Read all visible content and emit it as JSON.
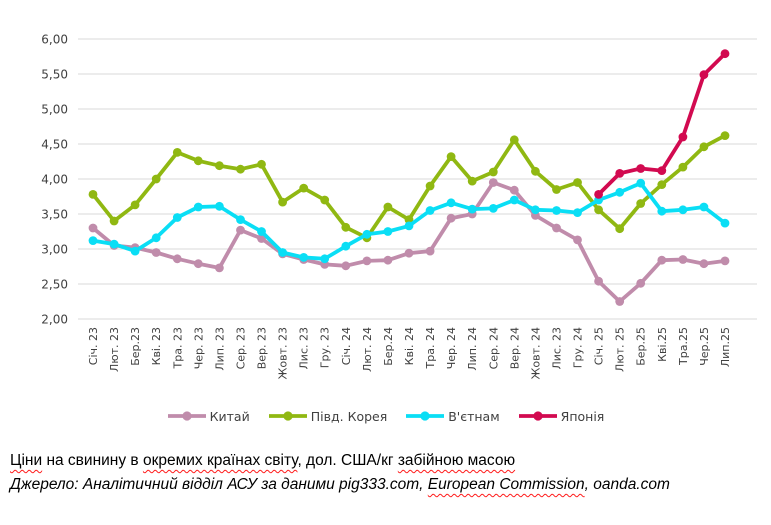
{
  "chart_data": {
    "type": "line",
    "grid": true,
    "legend_position": "bottom",
    "ylim": [
      2.0,
      6.0
    ],
    "y_tick_labels": [
      "6,00",
      "5,50",
      "5,00",
      "4,50",
      "4,00",
      "3,50",
      "3,00",
      "2,50",
      "2,00"
    ],
    "y_tick_values": [
      6.0,
      5.5,
      5.0,
      4.5,
      4.0,
      3.5,
      3.0,
      2.5,
      2.0
    ],
    "categories": [
      "Січ. 23",
      "Лют. 23",
      "Бер.23",
      "Кві. 23",
      "Тра. 23",
      "Чер. 23",
      "Лип. 23",
      "Сер. 23",
      "Вер. 23",
      "Жовт. 23",
      "Лис. 23",
      "Гру. 23",
      "Січ. 24",
      "Лют. 24",
      "Бер.24",
      "Кві. 24",
      "Тра. 24",
      "Чер. 24",
      "Лип. 24",
      "Сер. 24",
      "Вер. 24",
      "Жовт. 24",
      "Лис. 23",
      "Гру. 24",
      "Січ. 25",
      "Лют. 25",
      "Бер.25",
      "Кві.25",
      "Тра.25",
      "Чер.25",
      "Лип.25"
    ],
    "series": [
      {
        "id": "china",
        "name": "Китай",
        "color": "#c08cab",
        "values": [
          3.3,
          3.05,
          3.02,
          2.95,
          2.86,
          2.79,
          2.73,
          3.27,
          3.15,
          2.93,
          2.85,
          2.78,
          2.76,
          2.83,
          2.84,
          2.94,
          2.97,
          3.44,
          3.5,
          3.95,
          3.84,
          3.48,
          3.3,
          3.13,
          2.54,
          2.25,
          2.51,
          2.84,
          2.85,
          2.79,
          2.83
        ]
      },
      {
        "id": "south-korea",
        "name": "Півд. Корея",
        "color": "#90b812",
        "values": [
          3.78,
          3.4,
          3.63,
          4.0,
          4.38,
          4.26,
          4.19,
          4.14,
          4.21,
          3.67,
          3.87,
          3.7,
          3.31,
          3.16,
          3.6,
          3.42,
          3.9,
          4.32,
          3.97,
          4.1,
          4.56,
          4.11,
          3.85,
          3.95,
          3.56,
          3.29,
          3.65,
          3.92,
          4.17,
          4.46,
          4.62
        ]
      },
      {
        "id": "vietnam",
        "name": "В'єтнам",
        "color": "#0adef5",
        "values": [
          3.12,
          3.07,
          2.97,
          3.16,
          3.45,
          3.6,
          3.61,
          3.42,
          3.25,
          2.95,
          2.88,
          2.86,
          3.04,
          3.21,
          3.25,
          3.33,
          3.55,
          3.66,
          3.57,
          3.58,
          3.7,
          3.56,
          3.55,
          3.52,
          3.7,
          3.81,
          3.94,
          3.54,
          3.56,
          3.6,
          3.37
        ]
      },
      {
        "id": "japan",
        "name": "Японія",
        "color": "#d20a50",
        "values": [
          null,
          null,
          null,
          null,
          null,
          null,
          null,
          null,
          null,
          null,
          null,
          null,
          null,
          null,
          null,
          null,
          null,
          null,
          null,
          null,
          null,
          null,
          null,
          null,
          3.78,
          4.08,
          4.15,
          4.12,
          4.6,
          5.49,
          5.79
        ]
      }
    ],
    "gridline_color": "#d9d9d9",
    "axis_text_color": "#404040"
  },
  "caption": {
    "title_segments": [
      {
        "text": "Ціни",
        "misspelled": true
      },
      {
        "text": " на свинину в ",
        "misspelled": false
      },
      {
        "text": "окремих країнах світу",
        "misspelled": true
      },
      {
        "text": ", дол. США/кг ",
        "misspelled": false
      },
      {
        "text": "забійною масою",
        "misspelled": true
      }
    ],
    "source_segments": [
      {
        "text": "Джерело: Аналітичний відділ АСУ за даними pig333.com, ",
        "misspelled": false
      },
      {
        "text": "European Commission",
        "misspelled": true
      },
      {
        "text": ", oanda.com",
        "misspelled": false
      }
    ]
  }
}
